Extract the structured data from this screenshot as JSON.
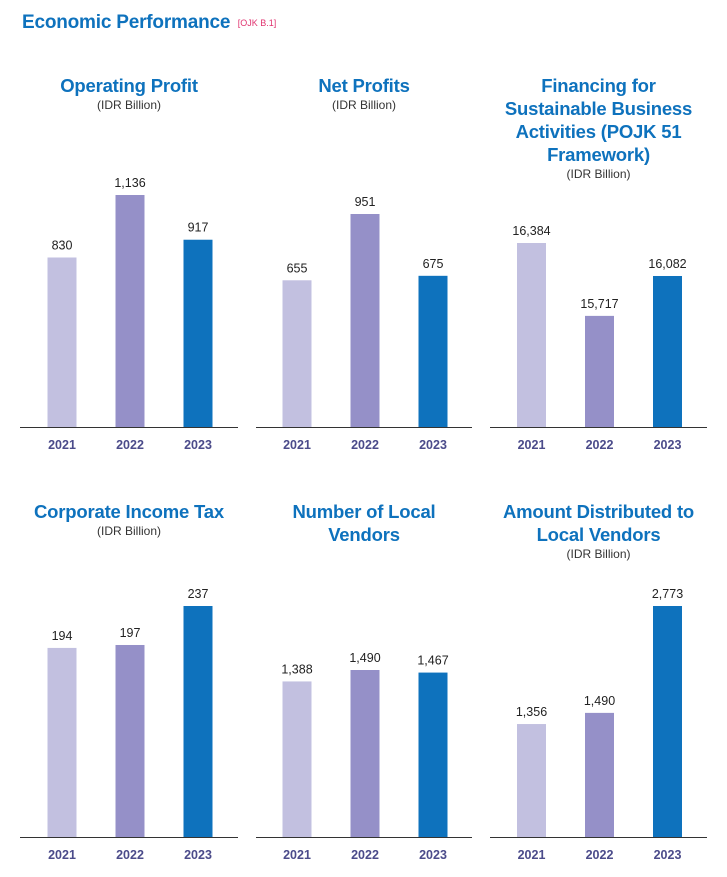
{
  "header": {
    "title": "Economic Performance",
    "reference": "[OJK B.1]"
  },
  "colors": {
    "year_2021": "#c2c0e0",
    "year_2022": "#9590c8",
    "year_2023": "#0e72bd",
    "title": "#0e72bd",
    "reference": "#e0336f",
    "axis": "#333333",
    "year_label": "#4b4b8a"
  },
  "chart_data": [
    {
      "type": "bar",
      "title": "Operating Profit",
      "unit": "(IDR Billion)",
      "categories": [
        "2021",
        "2022",
        "2023"
      ],
      "values": [
        830,
        1136,
        917
      ],
      "labels": [
        "830",
        "1,136",
        "917"
      ],
      "ylim": [
        0,
        1136
      ]
    },
    {
      "type": "bar",
      "title": "Net Profits",
      "unit": "(IDR Billion)",
      "categories": [
        "2021",
        "2022",
        "2023"
      ],
      "values": [
        655,
        951,
        675
      ],
      "labels": [
        "655",
        "951",
        "675"
      ],
      "ylim": [
        0,
        951
      ]
    },
    {
      "type": "bar",
      "title": "Financing for Sustainable Business Activities (POJK 51 Framework)",
      "title_lines": [
        "Financing for",
        "Sustainable Business",
        "Activities (POJK 51",
        "Framework)"
      ],
      "unit": "(IDR Billion)",
      "categories": [
        "2021",
        "2022",
        "2023"
      ],
      "values": [
        16384,
        15717,
        16082
      ],
      "labels": [
        "16,384",
        "15,717",
        "16,082"
      ],
      "ylim": [
        14700,
        16384
      ]
    },
    {
      "type": "bar",
      "title": "Corporate Income Tax",
      "unit": "(IDR Billion)",
      "categories": [
        "2021",
        "2022",
        "2023"
      ],
      "values": [
        194,
        197,
        237
      ],
      "labels": [
        "194",
        "197",
        "237"
      ],
      "ylim": [
        0,
        237
      ]
    },
    {
      "type": "bar",
      "title": "Number of Local Vendors",
      "title_lines": [
        "Number of Local",
        "Vendors"
      ],
      "unit": "",
      "categories": [
        "2021",
        "2022",
        "2023"
      ],
      "values": [
        1388,
        1490,
        1467
      ],
      "labels": [
        "1,388",
        "1,490",
        "1,467"
      ],
      "ylim": [
        0,
        1490
      ]
    },
    {
      "type": "bar",
      "title": "Amount Distributed to Local Vendors",
      "title_lines": [
        "Amount Distributed to",
        "Local Vendors"
      ],
      "unit": "(IDR Billion)",
      "categories": [
        "2021",
        "2022",
        "2023"
      ],
      "values": [
        1356,
        1490,
        2773
      ],
      "labels": [
        "1,356",
        "1,490",
        "2,773"
      ],
      "ylim": [
        0,
        2773
      ]
    }
  ]
}
